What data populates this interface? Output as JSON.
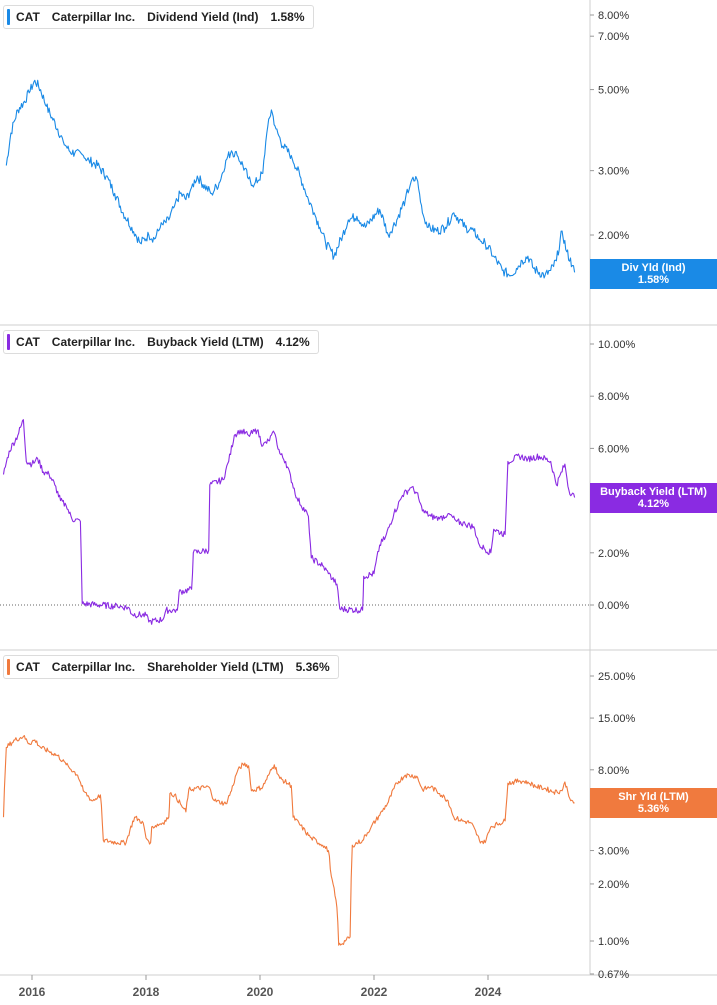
{
  "ticker": "CAT",
  "company": "Caterpillar Inc.",
  "x_axis_labels": [
    "2016",
    "2018",
    "2020",
    "2022",
    "2024"
  ],
  "panels": [
    {
      "metric": "Dividend Yield (Ind)",
      "value": "1.58%",
      "tag_label": "Div Yld (Ind)",
      "tag_value": "1.58%",
      "color": "#1a8ae6",
      "y_tick_labels": [
        "8.00%",
        "7.00%",
        "5.00%",
        "3.00%",
        "2.00%"
      ]
    },
    {
      "metric": "Buyback Yield (LTM)",
      "value": "4.12%",
      "tag_label": "Buyback Yield (LTM)",
      "tag_value": "4.12%",
      "color": "#8a2be2",
      "y_tick_labels": [
        "10.00%",
        "8.00%",
        "6.00%",
        "2.00%",
        "0.00%"
      ]
    },
    {
      "metric": "Shareholder Yield (LTM)",
      "value": "5.36%",
      "tag_label": "Shr Yld (LTM)",
      "tag_value": "5.36%",
      "color": "#f07a3e",
      "y_tick_labels": [
        "25.00%",
        "15.00%",
        "8.00%",
        "3.00%",
        "2.00%",
        "1.00%",
        "0.67%"
      ]
    }
  ],
  "chart_data": [
    {
      "type": "line",
      "title": "CAT Caterpillar Inc. Dividend Yield (Ind) 1.58%",
      "scale": "log",
      "ylim": [
        1.45,
        8.6
      ],
      "yticks": [
        8,
        7,
        5,
        3,
        2
      ],
      "grid": false,
      "series": [
        {
          "name": "Dividend Yield (Ind)",
          "points": [
            [
              2015.55,
              3.1
            ],
            [
              2015.63,
              3.8
            ],
            [
              2015.75,
              4.4
            ],
            [
              2015.85,
              4.6
            ],
            [
              2015.95,
              4.9
            ],
            [
              2016.05,
              5.3
            ],
            [
              2016.15,
              5.0
            ],
            [
              2016.25,
              4.5
            ],
            [
              2016.35,
              4.2
            ],
            [
              2016.45,
              3.9
            ],
            [
              2016.55,
              3.6
            ],
            [
              2016.65,
              3.4
            ],
            [
              2016.75,
              3.35
            ],
            [
              2016.9,
              3.3
            ],
            [
              2017.0,
              3.2
            ],
            [
              2017.15,
              3.1
            ],
            [
              2017.3,
              2.9
            ],
            [
              2017.45,
              2.6
            ],
            [
              2017.6,
              2.3
            ],
            [
              2017.75,
              2.1
            ],
            [
              2017.9,
              1.9
            ],
            [
              2018.05,
              2.0
            ],
            [
              2018.15,
              1.95
            ],
            [
              2018.25,
              2.1
            ],
            [
              2018.4,
              2.2
            ],
            [
              2018.5,
              2.4
            ],
            [
              2018.6,
              2.6
            ],
            [
              2018.7,
              2.5
            ],
            [
              2018.8,
              2.7
            ],
            [
              2018.9,
              2.9
            ],
            [
              2019.0,
              2.75
            ],
            [
              2019.15,
              2.6
            ],
            [
              2019.3,
              2.8
            ],
            [
              2019.4,
              3.2
            ],
            [
              2019.5,
              3.4
            ],
            [
              2019.6,
              3.3
            ],
            [
              2019.7,
              3.1
            ],
            [
              2019.8,
              2.85
            ],
            [
              2019.9,
              2.75
            ],
            [
              2020.05,
              2.95
            ],
            [
              2020.12,
              3.8
            ],
            [
              2020.2,
              4.4
            ],
            [
              2020.28,
              3.9
            ],
            [
              2020.4,
              3.5
            ],
            [
              2020.55,
              3.3
            ],
            [
              2020.7,
              2.9
            ],
            [
              2020.85,
              2.5
            ],
            [
              2020.95,
              2.3
            ],
            [
              2021.05,
              2.1
            ],
            [
              2021.15,
              1.9
            ],
            [
              2021.3,
              1.75
            ],
            [
              2021.45,
              2.0
            ],
            [
              2021.55,
              2.2
            ],
            [
              2021.7,
              2.25
            ],
            [
              2021.85,
              2.1
            ],
            [
              2021.95,
              2.2
            ],
            [
              2022.1,
              2.35
            ],
            [
              2022.25,
              2.0
            ],
            [
              2022.4,
              2.2
            ],
            [
              2022.55,
              2.5
            ],
            [
              2022.65,
              2.8
            ],
            [
              2022.75,
              2.85
            ],
            [
              2022.85,
              2.3
            ],
            [
              2022.95,
              2.1
            ],
            [
              2023.1,
              2.05
            ],
            [
              2023.25,
              2.1
            ],
            [
              2023.4,
              2.3
            ],
            [
              2023.5,
              2.2
            ],
            [
              2023.6,
              2.1
            ],
            [
              2023.75,
              2.05
            ],
            [
              2023.85,
              1.95
            ],
            [
              2023.95,
              1.9
            ],
            [
              2024.1,
              1.75
            ],
            [
              2024.25,
              1.6
            ],
            [
              2024.4,
              1.55
            ],
            [
              2024.5,
              1.62
            ],
            [
              2024.6,
              1.7
            ],
            [
              2024.7,
              1.75
            ],
            [
              2024.8,
              1.62
            ],
            [
              2024.9,
              1.58
            ],
            [
              2025.0,
              1.55
            ],
            [
              2025.1,
              1.6
            ],
            [
              2025.2,
              1.7
            ],
            [
              2025.3,
              2.05
            ],
            [
              2025.38,
              1.8
            ],
            [
              2025.48,
              1.65
            ],
            [
              2025.52,
              1.58
            ]
          ]
        }
      ]
    },
    {
      "type": "line",
      "title": "CAT Caterpillar Inc. Buyback Yield (LTM) 4.12%",
      "ylim": [
        -0.7,
        10.5
      ],
      "yticks": [
        10,
        8,
        6,
        2,
        0
      ],
      "grid": false,
      "reference_line": 0,
      "series": [
        {
          "name": "Buyback Yield (LTM)",
          "points": [
            [
              2015.5,
              5.0
            ],
            [
              2015.6,
              5.9
            ],
            [
              2015.75,
              6.5
            ],
            [
              2015.85,
              7.1
            ],
            [
              2015.9,
              5.5
            ],
            [
              2016.0,
              5.4
            ],
            [
              2016.1,
              5.6
            ],
            [
              2016.2,
              5.1
            ],
            [
              2016.3,
              5.0
            ],
            [
              2016.4,
              4.6
            ],
            [
              2016.5,
              4.0
            ],
            [
              2016.6,
              3.8
            ],
            [
              2016.7,
              3.3
            ],
            [
              2016.85,
              3.2
            ],
            [
              2016.88,
              0.05
            ],
            [
              2017.2,
              0.0
            ],
            [
              2017.5,
              -0.05
            ],
            [
              2017.7,
              -0.1
            ],
            [
              2017.75,
              -0.35
            ],
            [
              2018.0,
              -0.4
            ],
            [
              2018.05,
              -0.65
            ],
            [
              2018.3,
              -0.55
            ],
            [
              2018.35,
              -0.2
            ],
            [
              2018.55,
              -0.2
            ],
            [
              2018.58,
              0.5
            ],
            [
              2018.8,
              0.6
            ],
            [
              2018.83,
              2.0
            ],
            [
              2019.1,
              2.1
            ],
            [
              2019.12,
              4.6
            ],
            [
              2019.35,
              4.8
            ],
            [
              2019.45,
              5.5
            ],
            [
              2019.55,
              6.5
            ],
            [
              2019.65,
              6.7
            ],
            [
              2019.8,
              6.5
            ],
            [
              2019.95,
              6.7
            ],
            [
              2020.05,
              6.1
            ],
            [
              2020.15,
              6.3
            ],
            [
              2020.25,
              6.6
            ],
            [
              2020.35,
              5.8
            ],
            [
              2020.45,
              5.5
            ],
            [
              2020.65,
              4.1
            ],
            [
              2020.85,
              3.4
            ],
            [
              2020.9,
              1.8
            ],
            [
              2021.1,
              1.5
            ],
            [
              2021.2,
              1.2
            ],
            [
              2021.35,
              0.8
            ],
            [
              2021.4,
              -0.15
            ],
            [
              2021.8,
              -0.2
            ],
            [
              2021.82,
              1.1
            ],
            [
              2022.0,
              1.2
            ],
            [
              2022.1,
              2.3
            ],
            [
              2022.2,
              2.6
            ],
            [
              2022.35,
              3.5
            ],
            [
              2022.5,
              4.2
            ],
            [
              2022.65,
              4.5
            ],
            [
              2022.75,
              4.3
            ],
            [
              2022.85,
              3.6
            ],
            [
              2023.0,
              3.4
            ],
            [
              2023.15,
              3.3
            ],
            [
              2023.3,
              3.5
            ],
            [
              2023.45,
              3.2
            ],
            [
              2023.6,
              3.1
            ],
            [
              2023.75,
              3.0
            ],
            [
              2023.85,
              2.3
            ],
            [
              2024.05,
              2.0
            ],
            [
              2024.1,
              2.9
            ],
            [
              2024.3,
              2.7
            ],
            [
              2024.35,
              5.5
            ],
            [
              2024.55,
              5.7
            ],
            [
              2024.7,
              5.6
            ],
            [
              2024.9,
              5.7
            ],
            [
              2025.1,
              5.5
            ],
            [
              2025.2,
              4.6
            ],
            [
              2025.35,
              5.4
            ],
            [
              2025.42,
              4.4
            ],
            [
              2025.52,
              4.12
            ]
          ]
        }
      ]
    },
    {
      "type": "line",
      "title": "CAT Caterpillar Inc. Shareholder Yield (LTM) 5.36%",
      "scale": "log",
      "ylim": [
        0.67,
        25
      ],
      "yticks": [
        25,
        15,
        8,
        3,
        2,
        1,
        0.67
      ],
      "grid": false,
      "series": [
        {
          "name": "Shareholder Yield (LTM)",
          "points": [
            [
              2015.5,
              4.5
            ],
            [
              2015.55,
              10.5
            ],
            [
              2015.7,
              11.5
            ],
            [
              2015.85,
              12.0
            ],
            [
              2015.95,
              11.0
            ],
            [
              2016.05,
              11.5
            ],
            [
              2016.15,
              10.5
            ],
            [
              2016.3,
              10.0
            ],
            [
              2016.45,
              9.5
            ],
            [
              2016.6,
              8.5
            ],
            [
              2016.8,
              7.5
            ],
            [
              2016.9,
              6.2
            ],
            [
              2017.05,
              5.5
            ],
            [
              2017.15,
              5.7
            ],
            [
              2017.2,
              5.9
            ],
            [
              2017.25,
              3.4
            ],
            [
              2017.5,
              3.3
            ],
            [
              2017.65,
              3.3
            ],
            [
              2017.8,
              4.5
            ],
            [
              2017.95,
              4.2
            ],
            [
              2018.0,
              3.5
            ],
            [
              2018.08,
              3.3
            ],
            [
              2018.1,
              4.0
            ],
            [
              2018.3,
              4.2
            ],
            [
              2018.4,
              4.5
            ],
            [
              2018.42,
              6.0
            ],
            [
              2018.5,
              5.9
            ],
            [
              2018.62,
              5.2
            ],
            [
              2018.7,
              4.8
            ],
            [
              2018.75,
              6.3
            ],
            [
              2019.1,
              6.5
            ],
            [
              2019.2,
              5.5
            ],
            [
              2019.4,
              5.3
            ],
            [
              2019.5,
              6.2
            ],
            [
              2019.6,
              7.8
            ],
            [
              2019.7,
              8.6
            ],
            [
              2019.8,
              8.4
            ],
            [
              2019.85,
              6.2
            ],
            [
              2020.05,
              6.5
            ],
            [
              2020.15,
              7.5
            ],
            [
              2020.25,
              8.5
            ],
            [
              2020.35,
              7.2
            ],
            [
              2020.55,
              6.6
            ],
            [
              2020.58,
              4.5
            ],
            [
              2020.85,
              3.6
            ],
            [
              2020.9,
              3.5
            ],
            [
              2021.1,
              3.2
            ],
            [
              2021.2,
              3.0
            ],
            [
              2021.25,
              2.2
            ],
            [
              2021.35,
              1.5
            ],
            [
              2021.38,
              0.95
            ],
            [
              2021.5,
              1.0
            ],
            [
              2021.58,
              1.05
            ],
            [
              2021.62,
              3.2
            ],
            [
              2021.8,
              3.4
            ],
            [
              2021.95,
              4.0
            ],
            [
              2022.1,
              4.6
            ],
            [
              2022.25,
              5.4
            ],
            [
              2022.4,
              6.8
            ],
            [
              2022.55,
              7.5
            ],
            [
              2022.75,
              7.4
            ],
            [
              2022.85,
              6.3
            ],
            [
              2023.0,
              6.5
            ],
            [
              2023.15,
              6.0
            ],
            [
              2023.3,
              5.5
            ],
            [
              2023.4,
              4.5
            ],
            [
              2023.55,
              4.3
            ],
            [
              2023.7,
              4.2
            ],
            [
              2023.85,
              3.4
            ],
            [
              2023.95,
              3.3
            ],
            [
              2024.05,
              4.0
            ],
            [
              2024.3,
              4.3
            ],
            [
              2024.35,
              6.8
            ],
            [
              2024.55,
              7.0
            ],
            [
              2024.7,
              6.9
            ],
            [
              2024.85,
              6.5
            ],
            [
              2025.0,
              6.4
            ],
            [
              2025.15,
              6.1
            ],
            [
              2025.3,
              6.2
            ],
            [
              2025.35,
              6.9
            ],
            [
              2025.45,
              5.5
            ],
            [
              2025.52,
              5.36
            ]
          ]
        }
      ]
    }
  ]
}
